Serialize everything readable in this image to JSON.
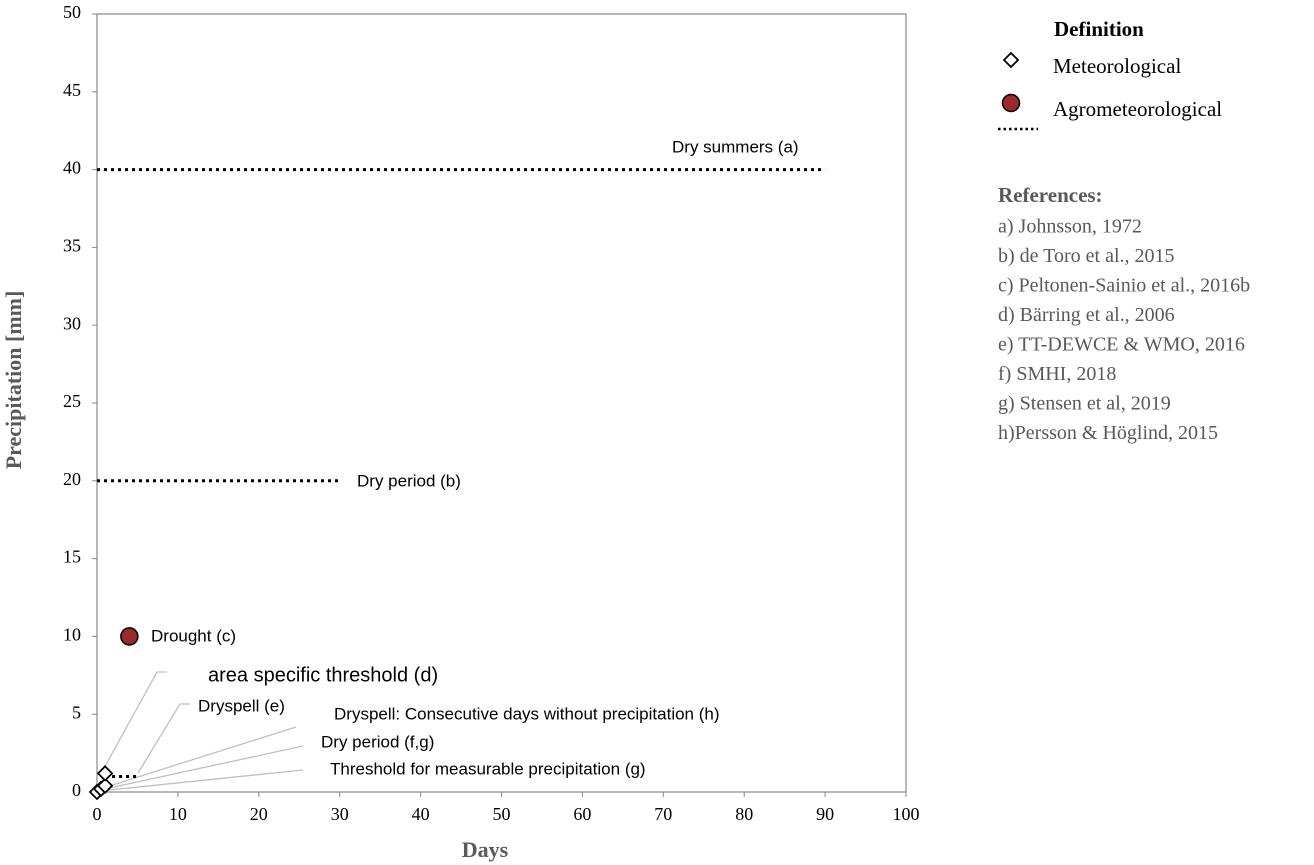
{
  "chart_data": {
    "type": "scatter",
    "xlabel": "Days",
    "ylabel": "Precipitation [mm]",
    "xlim": [
      0,
      100
    ],
    "xticks": [
      0,
      10,
      20,
      30,
      40,
      50,
      60,
      70,
      80,
      90,
      100
    ],
    "ylim": [
      0,
      50
    ],
    "yticks": [
      0,
      5,
      10,
      15,
      20,
      25,
      30,
      35,
      40,
      45,
      50
    ],
    "grid": false,
    "series": [
      {
        "name": "Meteorological",
        "marker": "diamond",
        "color": "#ffffff",
        "x": [
          0,
          0.5,
          1,
          1
        ],
        "values": [
          0,
          0.2,
          0.4,
          1.2
        ]
      },
      {
        "name": "Agrometeorological",
        "marker": "circle",
        "color": "#9b2b2b",
        "x": [
          4
        ],
        "values": [
          10
        ]
      }
    ],
    "lines": [
      {
        "x": [
          0,
          90
        ],
        "values": [
          40,
          40
        ]
      },
      {
        "x": [
          0,
          30
        ],
        "values": [
          20,
          20
        ]
      },
      {
        "x": [
          1,
          5
        ],
        "values": [
          1,
          1
        ]
      }
    ],
    "annotations": [
      "Dry summers (a)",
      "Dry period (b)",
      "Drought (c)",
      "area specific threshold (d)",
      "Dryspell (e)",
      "Dryspell: Consecutive days without precipitation (h)",
      "Dry period (f,g)",
      "Threshold for measurable precipitation (g)"
    ],
    "legend_title": "Definition",
    "references": {
      "title": "References:",
      "items": [
        "a) Johnsson, 1972",
        "b) de Toro et al., 2015",
        "c) Peltonen-Sainio et al., 2016b",
        "d) Bärring et al., 2006",
        "e) TT-DEWCE & WMO, 2016",
        "f) SMHI, 2018",
        "g) Stensen et al, 2019",
        "h)Persson & Höglind, 2015"
      ]
    }
  }
}
